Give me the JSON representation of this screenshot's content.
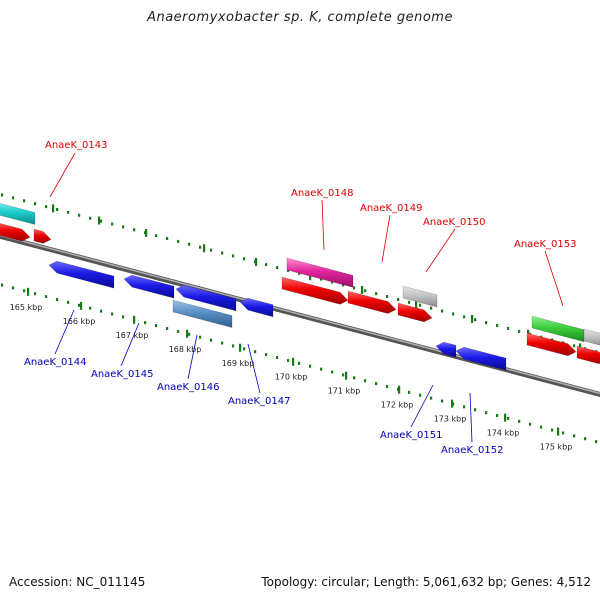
{
  "title": "Anaeromyxobacter sp. K, complete genome",
  "footer": {
    "accession": "Accession: NC_011145",
    "topology": "Topology: circular; Length: 5,061,632 bp; Genes: 4,512"
  },
  "colors": {
    "forward_label": "#dd0000",
    "reverse_label": "#0000bb",
    "tick": "#1a7a1a",
    "backbone": "#7a7a7a",
    "cds_red": "#ee0000",
    "cds_blue": "#1a1ae6"
  },
  "scale_ticks": [
    {
      "label": "165 kbp",
      "kbp": 165
    },
    {
      "label": "166 kbp",
      "kbp": 166
    },
    {
      "label": "167 kbp",
      "kbp": 167
    },
    {
      "label": "168 kbp",
      "kbp": 168
    },
    {
      "label": "169 kbp",
      "kbp": 169
    },
    {
      "label": "170 kbp",
      "kbp": 170
    },
    {
      "label": "171 kbp",
      "kbp": 171
    },
    {
      "label": "172 kbp",
      "kbp": 172
    },
    {
      "label": "173 kbp",
      "kbp": 173
    },
    {
      "label": "174 kbp",
      "kbp": 174
    },
    {
      "label": "175 kbp",
      "kbp": 175
    }
  ],
  "gene_labels_forward": [
    "AnaeK_0143",
    "AnaeK_0148",
    "AnaeK_0149",
    "AnaeK_0150",
    "AnaeK_0153"
  ],
  "gene_labels_reverse": [
    "AnaeK_0144",
    "AnaeK_0145",
    "AnaeK_0146",
    "AnaeK_0147",
    "AnaeK_0151",
    "AnaeK_0152"
  ]
}
